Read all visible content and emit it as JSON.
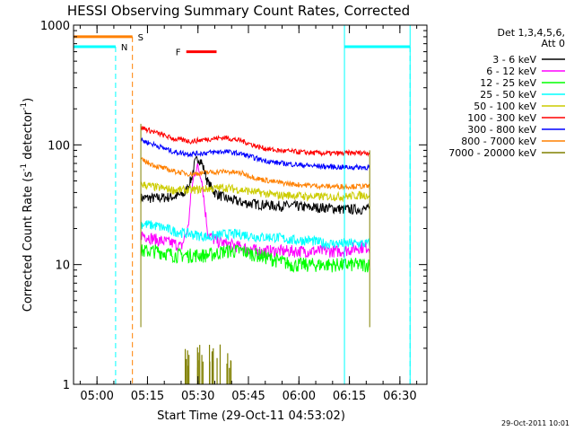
{
  "chart_data": {
    "type": "line",
    "title": "HESSI Observing Summary Count Rates, Corrected",
    "xlabel": "Start Time (29-Oct-11 04:53:02)",
    "ylabel": "Corrected Count Rate (s",
    "ylabel_sup1": "-1",
    "ylabel_mid": " detector",
    "ylabel_sup2": "-1",
    "ylabel_end": ")",
    "yscale": "log",
    "ylim": [
      1,
      1000
    ],
    "xlim_minutes": [
      0,
      105
    ],
    "x_tick_labels": [
      "05:00",
      "05:15",
      "05:30",
      "05:45",
      "06:00",
      "06:15",
      "06:30"
    ],
    "x_ticks_minutes": [
      6.97,
      21.97,
      36.97,
      51.97,
      66.97,
      81.97,
      96.97
    ],
    "y_tick_labels": [
      "1",
      "10",
      "100",
      "1000"
    ],
    "y_ticks": [
      1,
      10,
      100,
      1000
    ],
    "legend": {
      "title1": "Det 1,3,4,5,6,",
      "title2": "Att 0",
      "entries": [
        {
          "label": "3 - 6 keV",
          "color": "#000000"
        },
        {
          "label": "6 - 12 keV",
          "color": "#ff00ff"
        },
        {
          "label": "12 - 25 keV",
          "color": "#00ff00"
        },
        {
          "label": "25 - 50 keV",
          "color": "#00ffff"
        },
        {
          "label": "50 - 100 keV",
          "color": "#cccc00"
        },
        {
          "label": "100 - 300 keV",
          "color": "#ff0000"
        },
        {
          "label": "300 - 800 keV",
          "color": "#0000ff"
        },
        {
          "label": "800 - 7000 keV",
          "color": "#ff8000"
        },
        {
          "label": "7000 - 20000 keV",
          "color": "#808000"
        }
      ]
    },
    "series": [
      {
        "name": "3 - 6 keV",
        "color": "#000000",
        "x": [
          20,
          25,
          30,
          33,
          35,
          36,
          37,
          38,
          40,
          42,
          45,
          50,
          55,
          60,
          65,
          70,
          75,
          80,
          85,
          88
        ],
        "y": [
          36,
          36,
          37,
          39,
          52,
          70,
          78,
          72,
          48,
          40,
          36,
          33,
          32,
          31,
          31,
          30,
          30,
          29,
          29,
          29
        ]
      },
      {
        "name": "6 - 12 keV",
        "color": "#ff00ff",
        "x": [
          20,
          25,
          30,
          32,
          34,
          35,
          36,
          37,
          38,
          39,
          40,
          42,
          45,
          50,
          55,
          60,
          65,
          70,
          75,
          80,
          85,
          88
        ],
        "y": [
          18,
          16,
          15,
          14,
          20,
          40,
          60,
          65,
          55,
          30,
          18,
          16,
          15,
          14,
          13,
          13,
          13,
          13,
          13,
          13,
          14,
          14
        ]
      },
      {
        "name": "12 - 25 keV",
        "color": "#00ff00",
        "x": [
          20,
          25,
          30,
          35,
          40,
          45,
          50,
          55,
          60,
          65,
          70,
          75,
          80,
          85,
          88
        ],
        "y": [
          13,
          13,
          12,
          12,
          12,
          13,
          13,
          12,
          11,
          10,
          10,
          10,
          10,
          10,
          10
        ]
      },
      {
        "name": "25 - 50 keV",
        "color": "#00ffff",
        "x": [
          20,
          25,
          30,
          35,
          40,
          45,
          50,
          55,
          60,
          65,
          70,
          75,
          80,
          85,
          88
        ],
        "y": [
          22,
          21,
          19,
          18,
          17,
          18,
          18,
          17,
          17,
          16,
          16,
          15,
          15,
          15,
          15
        ]
      },
      {
        "name": "50 - 100 keV",
        "color": "#cccc00",
        "x": [
          20,
          25,
          30,
          35,
          40,
          45,
          50,
          55,
          60,
          65,
          70,
          75,
          80,
          85,
          88
        ],
        "y": [
          47,
          44,
          42,
          42,
          43,
          44,
          42,
          40,
          38,
          38,
          37,
          37,
          37,
          38,
          38
        ]
      },
      {
        "name": "100 - 300 keV",
        "color": "#ff0000",
        "x": [
          20,
          25,
          30,
          35,
          40,
          45,
          50,
          55,
          60,
          65,
          70,
          75,
          80,
          85,
          88
        ],
        "y": [
          140,
          125,
          112,
          107,
          112,
          115,
          108,
          96,
          90,
          88,
          86,
          85,
          85,
          86,
          86
        ]
      },
      {
        "name": "300 - 800 keV",
        "color": "#0000ff",
        "x": [
          20,
          25,
          30,
          35,
          40,
          45,
          50,
          55,
          60,
          65,
          70,
          75,
          80,
          85,
          88
        ],
        "y": [
          110,
          98,
          87,
          84,
          86,
          88,
          84,
          76,
          71,
          69,
          67,
          66,
          65,
          65,
          65
        ]
      },
      {
        "name": "800 - 7000 keV",
        "color": "#ff8000",
        "x": [
          20,
          25,
          30,
          35,
          40,
          45,
          50,
          55,
          60,
          65,
          70,
          75,
          80,
          85,
          88
        ],
        "y": [
          75,
          66,
          60,
          57,
          59,
          60,
          58,
          52,
          49,
          47,
          46,
          45,
          45,
          45,
          45
        ]
      }
    ],
    "saa_flag": {
      "label": "S",
      "color": "#ff8000",
      "x_start": 0,
      "x_end": 17.5,
      "y": 800,
      "vline_x": 17.5
    },
    "night_flag": {
      "label": "N",
      "color": "#00ffff",
      "y": 660,
      "segments": [
        [
          0,
          12.5
        ],
        [
          80.5,
          100
        ]
      ],
      "vlines": [
        12.5,
        100
      ],
      "edges": [
        80.5,
        100
      ]
    },
    "flare_flag": {
      "label": "F",
      "color": "#ff0000",
      "x_start": 33.5,
      "x_end": 42.5,
      "y": 600
    },
    "timestamp": "29-Oct-2011 10:01"
  }
}
